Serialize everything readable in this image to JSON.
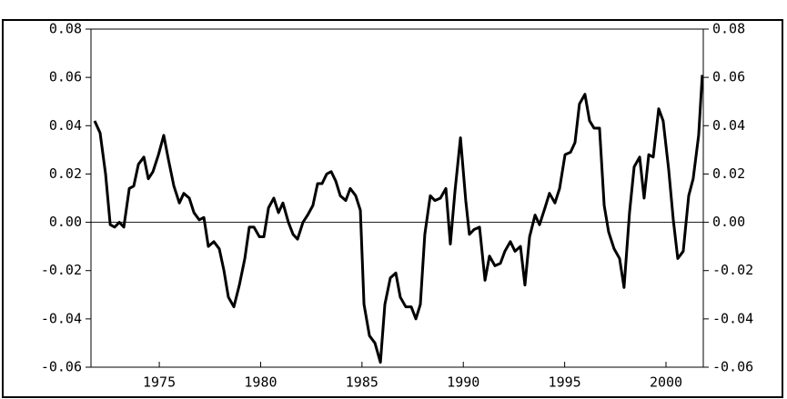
{
  "chart_data": {
    "type": "line",
    "x": [
      1971.81,
      1972.08,
      1972.35,
      1972.58,
      1972.8,
      1973.03,
      1973.25,
      1973.52,
      1973.74,
      1973.97,
      1974.24,
      1974.46,
      1974.69,
      1974.96,
      1975.22,
      1975.45,
      1975.72,
      1975.99,
      1976.21,
      1976.48,
      1976.71,
      1976.97,
      1977.2,
      1977.42,
      1977.69,
      1977.96,
      1978.19,
      1978.41,
      1978.68,
      1978.95,
      1979.22,
      1979.44,
      1979.67,
      1979.94,
      1980.16,
      1980.39,
      1980.65,
      1980.88,
      1981.1,
      1981.37,
      1981.6,
      1981.82,
      1982.09,
      1982.32,
      1982.58,
      1982.81,
      1983.03,
      1983.26,
      1983.48,
      1983.71,
      1983.93,
      1984.2,
      1984.42,
      1984.69,
      1984.92,
      1985.1,
      1985.37,
      1985.64,
      1985.91,
      1986.13,
      1986.4,
      1986.67,
      1986.89,
      1987.16,
      1987.43,
      1987.66,
      1987.88,
      1988.1,
      1988.37,
      1988.6,
      1988.87,
      1989.14,
      1989.36,
      1989.59,
      1989.86,
      1990.12,
      1990.3,
      1990.53,
      1990.8,
      1991.07,
      1991.29,
      1991.56,
      1991.83,
      1992.05,
      1992.32,
      1992.55,
      1992.82,
      1993.04,
      1993.27,
      1993.54,
      1993.76,
      1994.03,
      1994.25,
      1994.52,
      1994.75,
      1995.02,
      1995.29,
      1995.51,
      1995.73,
      1996.0,
      1996.23,
      1996.45,
      1996.72,
      1996.95,
      1997.17,
      1997.44,
      1997.71,
      1997.93,
      1998.2,
      1998.43,
      1998.7,
      1998.92,
      1999.15,
      1999.37,
      1999.64,
      1999.86,
      2000.13,
      2000.36,
      2000.58,
      2000.85,
      2001.12,
      2001.34,
      2001.61,
      2001.79
    ],
    "series": [
      {
        "color": "#000000",
        "values": [
          0.042,
          0.037,
          0.02,
          -0.001,
          -0.002,
          0.0,
          -0.002,
          0.014,
          0.015,
          0.024,
          0.027,
          0.018,
          0.021,
          0.028,
          0.036,
          0.026,
          0.015,
          0.008,
          0.012,
          0.01,
          0.004,
          0.001,
          0.002,
          -0.01,
          -0.008,
          -0.011,
          -0.02,
          -0.031,
          -0.035,
          -0.026,
          -0.015,
          -0.002,
          -0.002,
          -0.006,
          -0.006,
          0.006,
          0.01,
          0.004,
          0.008,
          0.0,
          -0.005,
          -0.007,
          0.0,
          0.003,
          0.007,
          0.016,
          0.016,
          0.02,
          0.021,
          0.017,
          0.011,
          0.009,
          0.014,
          0.011,
          0.005,
          -0.034,
          -0.047,
          -0.05,
          -0.058,
          -0.034,
          -0.023,
          -0.021,
          -0.031,
          -0.035,
          -0.035,
          -0.04,
          -0.034,
          -0.005,
          0.011,
          0.009,
          0.01,
          0.014,
          -0.009,
          0.013,
          0.035,
          0.009,
          -0.005,
          -0.003,
          -0.002,
          -0.024,
          -0.014,
          -0.018,
          -0.017,
          -0.012,
          -0.008,
          -0.012,
          -0.01,
          -0.026,
          -0.006,
          0.003,
          -0.001,
          0.006,
          0.012,
          0.008,
          0.014,
          0.028,
          0.029,
          0.033,
          0.049,
          0.053,
          0.042,
          0.039,
          0.039,
          0.007,
          -0.004,
          -0.011,
          -0.015,
          -0.027,
          0.004,
          0.023,
          0.027,
          0.01,
          0.028,
          0.027,
          0.047,
          0.042,
          0.022,
          0.001,
          -0.015,
          -0.012,
          0.011,
          0.018,
          0.036,
          0.061
        ]
      }
    ],
    "xlim": [
      1971.63,
      2001.84
    ],
    "xticks": [
      1975,
      1980,
      1985,
      1990,
      1995,
      2000
    ],
    "ylim": [
      -0.06,
      0.08
    ],
    "yticks": [
      {
        "value": -0.06,
        "label": "-0.06"
      },
      {
        "value": -0.04,
        "label": "-0.04"
      },
      {
        "value": -0.02,
        "label": "-0.02"
      },
      {
        "value": 0,
        "label": "0.00"
      },
      {
        "value": 0.02,
        "label": "0.02"
      },
      {
        "value": 0.04,
        "label": "0.04"
      },
      {
        "value": 0.06,
        "label": "0.06"
      },
      {
        "value": 0.08,
        "label": "0.08"
      }
    ],
    "right_axis": true,
    "zero_line": true
  }
}
